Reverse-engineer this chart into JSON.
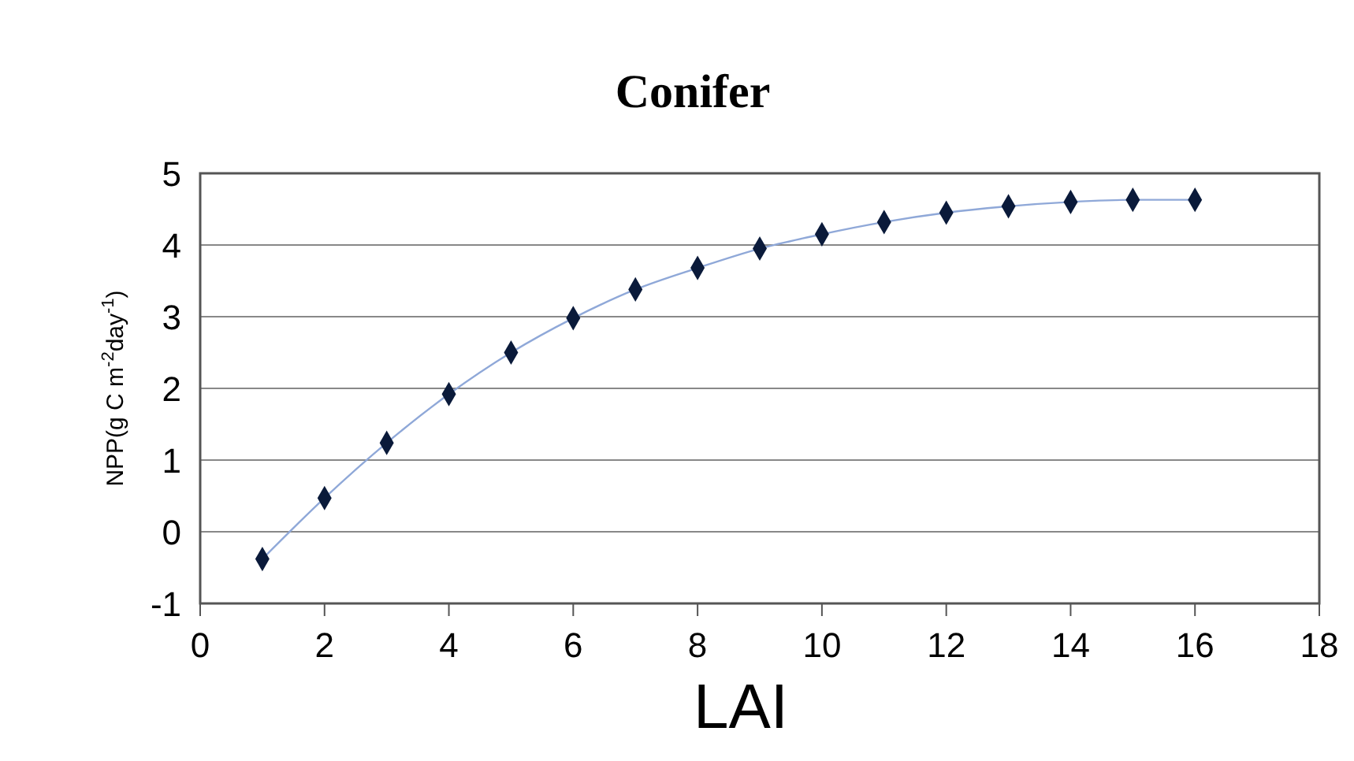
{
  "chart_data": {
    "type": "line",
    "title": "Conifer",
    "xlabel": "LAI",
    "ylabel": "NPP(g C m$^{-2}$day$^{-1}$)",
    "x": [
      1,
      2,
      3,
      4,
      5,
      6,
      7,
      8,
      9,
      10,
      11,
      12,
      13,
      14,
      15,
      16
    ],
    "series": [
      {
        "color": "#0a1a3a",
        "values": [
          -0.38,
          0.47,
          1.24,
          1.92,
          2.5,
          2.98,
          3.38,
          3.68,
          3.95,
          4.15,
          4.32,
          4.45,
          4.54,
          4.6,
          4.63,
          4.63
        ]
      }
    ],
    "xlim": [
      0,
      18
    ],
    "xticks": [
      0,
      2,
      4,
      6,
      8,
      10,
      12,
      14,
      16,
      18
    ],
    "ylim": [
      -1,
      5
    ],
    "yticks": [
      -1,
      0,
      1,
      2,
      3,
      4,
      5
    ],
    "grid": "y",
    "marker": "diamond",
    "line_style": "solid"
  }
}
